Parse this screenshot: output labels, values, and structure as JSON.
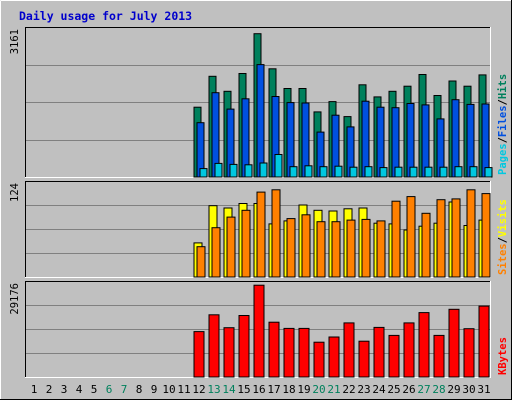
{
  "chart_data": {
    "type": "bar",
    "title": "Daily usage for July 2013",
    "days": [
      "1",
      "2",
      "3",
      "4",
      "5",
      "6",
      "7",
      "8",
      "9",
      "10",
      "11",
      "12",
      "13",
      "14",
      "15",
      "16",
      "17",
      "18",
      "19",
      "20",
      "21",
      "22",
      "23",
      "24",
      "25",
      "26",
      "27",
      "28",
      "29",
      "30",
      "31"
    ],
    "weekend_days": [
      "6",
      "7",
      "13",
      "14",
      "20",
      "21",
      "27",
      "28"
    ],
    "panels": [
      {
        "id": "hits",
        "max_label": "3161",
        "ymax": 3161,
        "legend": [
          {
            "text": "Pages",
            "color": "#00C8E0"
          },
          {
            "text": "/",
            "color": "#000000"
          },
          {
            "text": "Files",
            "color": "#0050E0"
          },
          {
            "text": "/",
            "color": "#000000"
          },
          {
            "text": "Hits",
            "color": "#00805C"
          }
        ],
        "series": [
          {
            "name": "Hits",
            "color": "#00805C",
            "values": [
              0,
              0,
              0,
              0,
              0,
              0,
              0,
              0,
              0,
              0,
              0,
              1490,
              2150,
              1830,
              2210,
              3060,
              2310,
              1890,
              1890,
              1390,
              1610,
              1290,
              1970,
              1710,
              1830,
              1940,
              2190,
              1740,
              2050,
              1940,
              2180
            ]
          },
          {
            "name": "Files",
            "color": "#0050E0",
            "values": [
              0,
              0,
              0,
              0,
              0,
              0,
              0,
              0,
              0,
              0,
              0,
              1160,
              1800,
              1450,
              1670,
              2400,
              1720,
              1590,
              1580,
              960,
              1320,
              1070,
              1620,
              1490,
              1480,
              1570,
              1540,
              1240,
              1650,
              1550,
              1560
            ]
          },
          {
            "name": "Pages",
            "color": "#00C8E0",
            "values": [
              0,
              0,
              0,
              0,
              0,
              0,
              0,
              0,
              0,
              0,
              0,
              180,
              290,
              270,
              260,
              300,
              480,
              220,
              240,
              220,
              230,
              210,
              220,
              200,
              210,
              210,
              210,
              210,
              220,
              220,
              200
            ]
          }
        ]
      },
      {
        "id": "visits",
        "max_label": "124",
        "ymax": 124,
        "legend": [
          {
            "text": "Sites",
            "color": "#FF8000"
          },
          {
            "text": "/",
            "color": "#000000"
          },
          {
            "text": "Visits",
            "color": "#FFFF00"
          }
        ],
        "series": [
          {
            "name": "Visits",
            "color": "#FFFF00",
            "values": [
              0,
              0,
              0,
              0,
              0,
              0,
              0,
              0,
              0,
              0,
              0,
              45,
              94,
              91,
              97,
              97,
              70,
              74,
              95,
              88,
              87,
              90,
              91,
              71,
              70,
              62,
              67,
              71,
              99,
              68,
              75
            ]
          },
          {
            "name": "Sites",
            "color": "#FF8000",
            "values": [
              0,
              0,
              0,
              0,
              0,
              0,
              0,
              0,
              0,
              0,
              0,
              40,
              65,
              79,
              88,
              112,
              115,
              77,
              82,
              73,
              73,
              75,
              76,
              74,
              100,
              106,
              84,
              102,
              103,
              115,
              110
            ]
          }
        ]
      },
      {
        "id": "kbytes",
        "max_label": "29176",
        "ymax": 29176,
        "legend": [
          {
            "text": "KBytes",
            "color": "#FF0000"
          }
        ],
        "series": [
          {
            "name": "KBytes",
            "color": "#FF0000",
            "values": [
              0,
              0,
              0,
              0,
              0,
              0,
              0,
              0,
              0,
              0,
              0,
              14100,
              19300,
              15300,
              19100,
              28500,
              17000,
              15100,
              15100,
              10800,
              12400,
              16800,
              11100,
              15400,
              12900,
              16800,
              20000,
              12900,
              21000,
              15000,
              22000
            ]
          }
        ]
      }
    ]
  }
}
